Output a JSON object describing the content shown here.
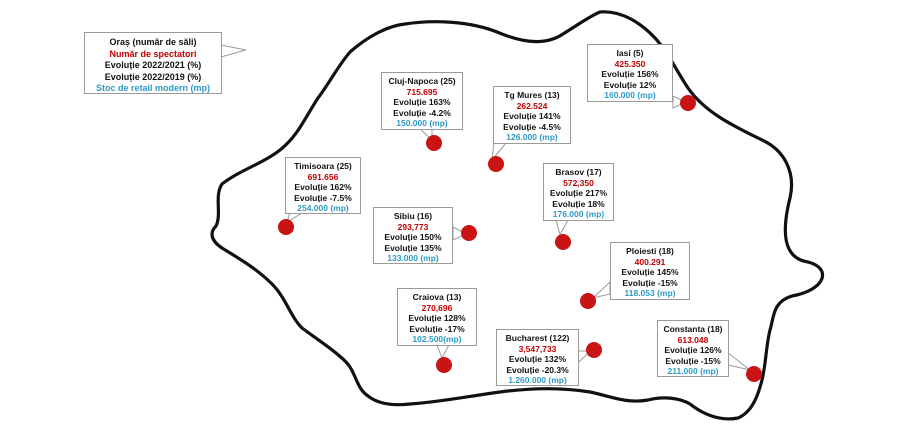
{
  "legend": {
    "line1": "Oraș (număr de săli)",
    "line2": "Număr de spectatori",
    "line3": "Evoluție 2022/2021 (%)",
    "line4": "Evoluție 2022/2019 (%)",
    "line5": "Stoc de retail modern (mp)"
  },
  "colors": {
    "spectators": "#c00000",
    "retail": "#2e9ac4",
    "marker": "#c81414",
    "outline": "#111111"
  },
  "cities": [
    {
      "id": "cluj",
      "name": "Cluj-Napoca (25)",
      "spectators": "715.695",
      "evo1": "Evoluție 163%",
      "evo2": "Evoluție -4.2%",
      "retail": "150.000 (mp)"
    },
    {
      "id": "targu-mures",
      "name": "Tg Mures (13)",
      "spectators": "262.524",
      "evo1": "Evoluție 141%",
      "evo2": "Evoluție -4.5%",
      "retail": "126.000 (mp)"
    },
    {
      "id": "iasi",
      "name": "Iasi (5)",
      "spectators": "425.350",
      "evo1": "Evoluție 156%",
      "evo2": "Evoluție 12%",
      "retail": "160.000 (mp)"
    },
    {
      "id": "timisoara",
      "name": "Timisoara (25)",
      "spectators": "691.656",
      "evo1": "Evoluție 162%",
      "evo2": "Evoluție -7.5%",
      "retail": "254.000 (mp)"
    },
    {
      "id": "brasov",
      "name": "Brasov (17)",
      "spectators": "572,350",
      "evo1": "Evoluție 217%",
      "evo2": "Evoluție 18%",
      "retail": "176.000 (mp)"
    },
    {
      "id": "sibiu",
      "name": "Sibiu (16)",
      "spectators": "293,773",
      "evo1": "Evoluție 150%",
      "evo2": "Evoluție 135%",
      "retail": "133.000 (mp)"
    },
    {
      "id": "ploiesti",
      "name": "Ploiesti (18)",
      "spectators": "400.291",
      "evo1": "Evoluție 145%",
      "evo2": "Evoluție -15%",
      "retail": "118.053 (mp)"
    },
    {
      "id": "craiova",
      "name": "Craiova (13)",
      "spectators": "270,696",
      "evo1": "Evoluție 128%",
      "evo2": "Evoluție -17%",
      "retail": "102.500(mp)"
    },
    {
      "id": "bucharest",
      "name": "Bucharest (122)",
      "spectators": "3,547,733",
      "evo1": "Evoluție 132%",
      "evo2": "Evoluție -20.3%",
      "retail": "1.260.000 (mp)"
    },
    {
      "id": "constanta",
      "name": "Constanta (18)",
      "spectators": "613.048",
      "evo1": "Evoluție 126%",
      "evo2": "Evoluție -15%",
      "retail": "211.000 (mp)"
    }
  ]
}
